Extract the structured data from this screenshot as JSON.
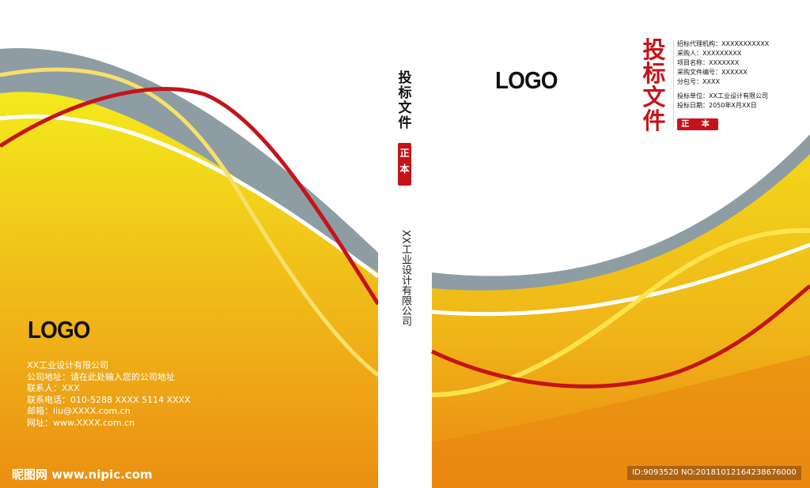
{
  "colors": {
    "accent_red": "#c4141b",
    "wave_yellow": "#f2d21a",
    "wave_orange": "#ea8a12",
    "wave_gray": "#8e9da3"
  },
  "back_cover": {
    "logo": "LOGO",
    "info_lines": [
      "XX工业设计有限公司",
      "公司地址：请在此处输入您的公司地址",
      "联系人：XXX",
      "联系电话：010-5288 XXXX   5114 XXXX",
      "邮箱：liu@XXXX.com.cn",
      "网址：www.XXXX.com.cn"
    ]
  },
  "spine": {
    "title": "投标文件",
    "badge": "正本",
    "company": "XX工业设计有限公司"
  },
  "front_cover": {
    "logo": "LOGO",
    "title": "投标文件",
    "info_lines": [
      "招标代理机构：XXXXXXXXXXX",
      "采购人：XXXXXXXXX",
      "项目名称：XXXXXXX",
      "采购文件编号：XXXXXX",
      "分包号：XXXX"
    ],
    "bidder_lines": [
      "投标单位：XX工业设计有限公司",
      "投标日期：2050年X月XX日"
    ],
    "badge": "正 本"
  },
  "watermark": {
    "site": "昵图网 www.nipic.com",
    "id_text": "ID:9093520 NO:20181012164238676000"
  }
}
